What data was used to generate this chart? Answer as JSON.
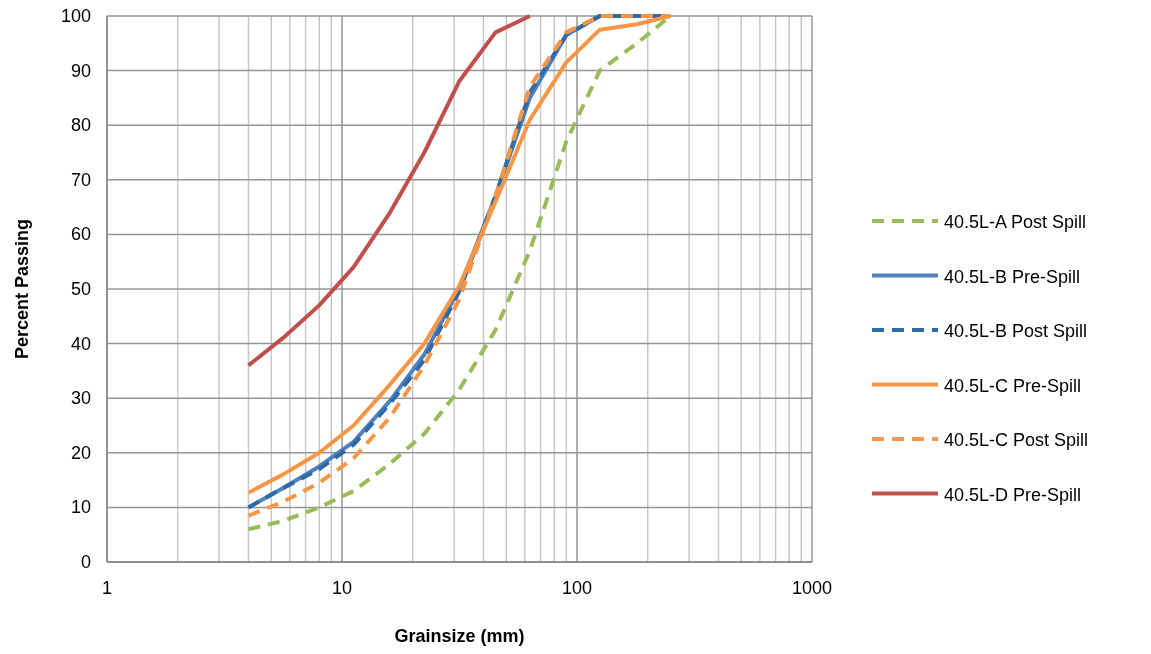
{
  "chart_data": {
    "type": "line",
    "xlabel": "Grainsize (mm)",
    "ylabel": "Percent Passing",
    "log": "x",
    "grid": true,
    "legend": "right",
    "line_style": "solid",
    "marker": "none",
    "x": [
      4,
      5.6,
      8,
      11.2,
      16,
      22.4,
      31.5,
      45,
      63,
      90,
      125,
      180,
      250
    ],
    "xlim": [
      1,
      1000
    ],
    "ylim": [
      0,
      100
    ],
    "xticks": [
      1,
      {
        "value": 2,
        "label": null
      },
      {
        "value": 3,
        "label": null
      },
      {
        "value": 4,
        "label": null
      },
      {
        "value": 5,
        "label": null
      },
      {
        "value": 6,
        "label": null
      },
      {
        "value": 7,
        "label": null
      },
      {
        "value": 8,
        "label": null
      },
      {
        "value": 9,
        "label": null
      },
      10,
      {
        "value": 20,
        "label": null
      },
      {
        "value": 30,
        "label": null
      },
      {
        "value": 40,
        "label": null
      },
      {
        "value": 50,
        "label": null
      },
      {
        "value": 60,
        "label": null
      },
      {
        "value": 70,
        "label": null
      },
      {
        "value": 80,
        "label": null
      },
      {
        "value": 90,
        "label": null
      },
      100,
      {
        "value": 200,
        "label": null
      },
      {
        "value": 300,
        "label": null
      },
      {
        "value": 400,
        "label": null
      },
      {
        "value": 500,
        "label": null
      },
      {
        "value": 600,
        "label": null
      },
      {
        "value": 700,
        "label": null
      },
      {
        "value": 800,
        "label": null
      },
      {
        "value": 900,
        "label": null
      },
      1000
    ],
    "yticks": [
      0,
      10,
      20,
      30,
      40,
      50,
      60,
      70,
      80,
      90,
      100
    ],
    "series": [
      {
        "name": "40.5L-A Post Spill",
        "color": "#9bbb59",
        "line_style": "dashed",
        "values": [
          6,
          7.5,
          10,
          13,
          18,
          23.5,
          31.5,
          42.5,
          57,
          77,
          90,
          95,
          100
        ]
      },
      {
        "name": "40.5L-B Pre-Spill",
        "color": "#4f81bd",
        "values": [
          10,
          13.5,
          17.5,
          22,
          29.5,
          38,
          50,
          67,
          85,
          96.5,
          100,
          100,
          100
        ]
      },
      {
        "name": "40.5L-B Post Spill",
        "color": "#2e6aa6",
        "line_style": "dashed",
        "values": [
          10,
          13.5,
          17,
          21.5,
          29,
          37,
          49.5,
          67,
          86,
          96.5,
          100,
          100,
          100
        ]
      },
      {
        "name": "40.5L-C Pre-Spill",
        "color": "#f79646",
        "values": [
          12.7,
          16,
          20,
          25,
          32.5,
          40,
          50.5,
          66,
          81,
          91.5,
          97.5,
          98.5,
          100
        ]
      },
      {
        "name": "40.5L-C Post Spill",
        "color": "#f79646",
        "line_style": "dashed",
        "values": [
          8.5,
          11,
          14.5,
          19,
          26.5,
          36,
          48,
          67,
          87,
          97,
          100,
          100,
          100
        ]
      },
      {
        "name": "40.5L-D Pre-Spill",
        "color": "#c0504d",
        "values": [
          36,
          41,
          47,
          54,
          64,
          75,
          88,
          97,
          100,
          null,
          null,
          null,
          null
        ]
      }
    ]
  }
}
